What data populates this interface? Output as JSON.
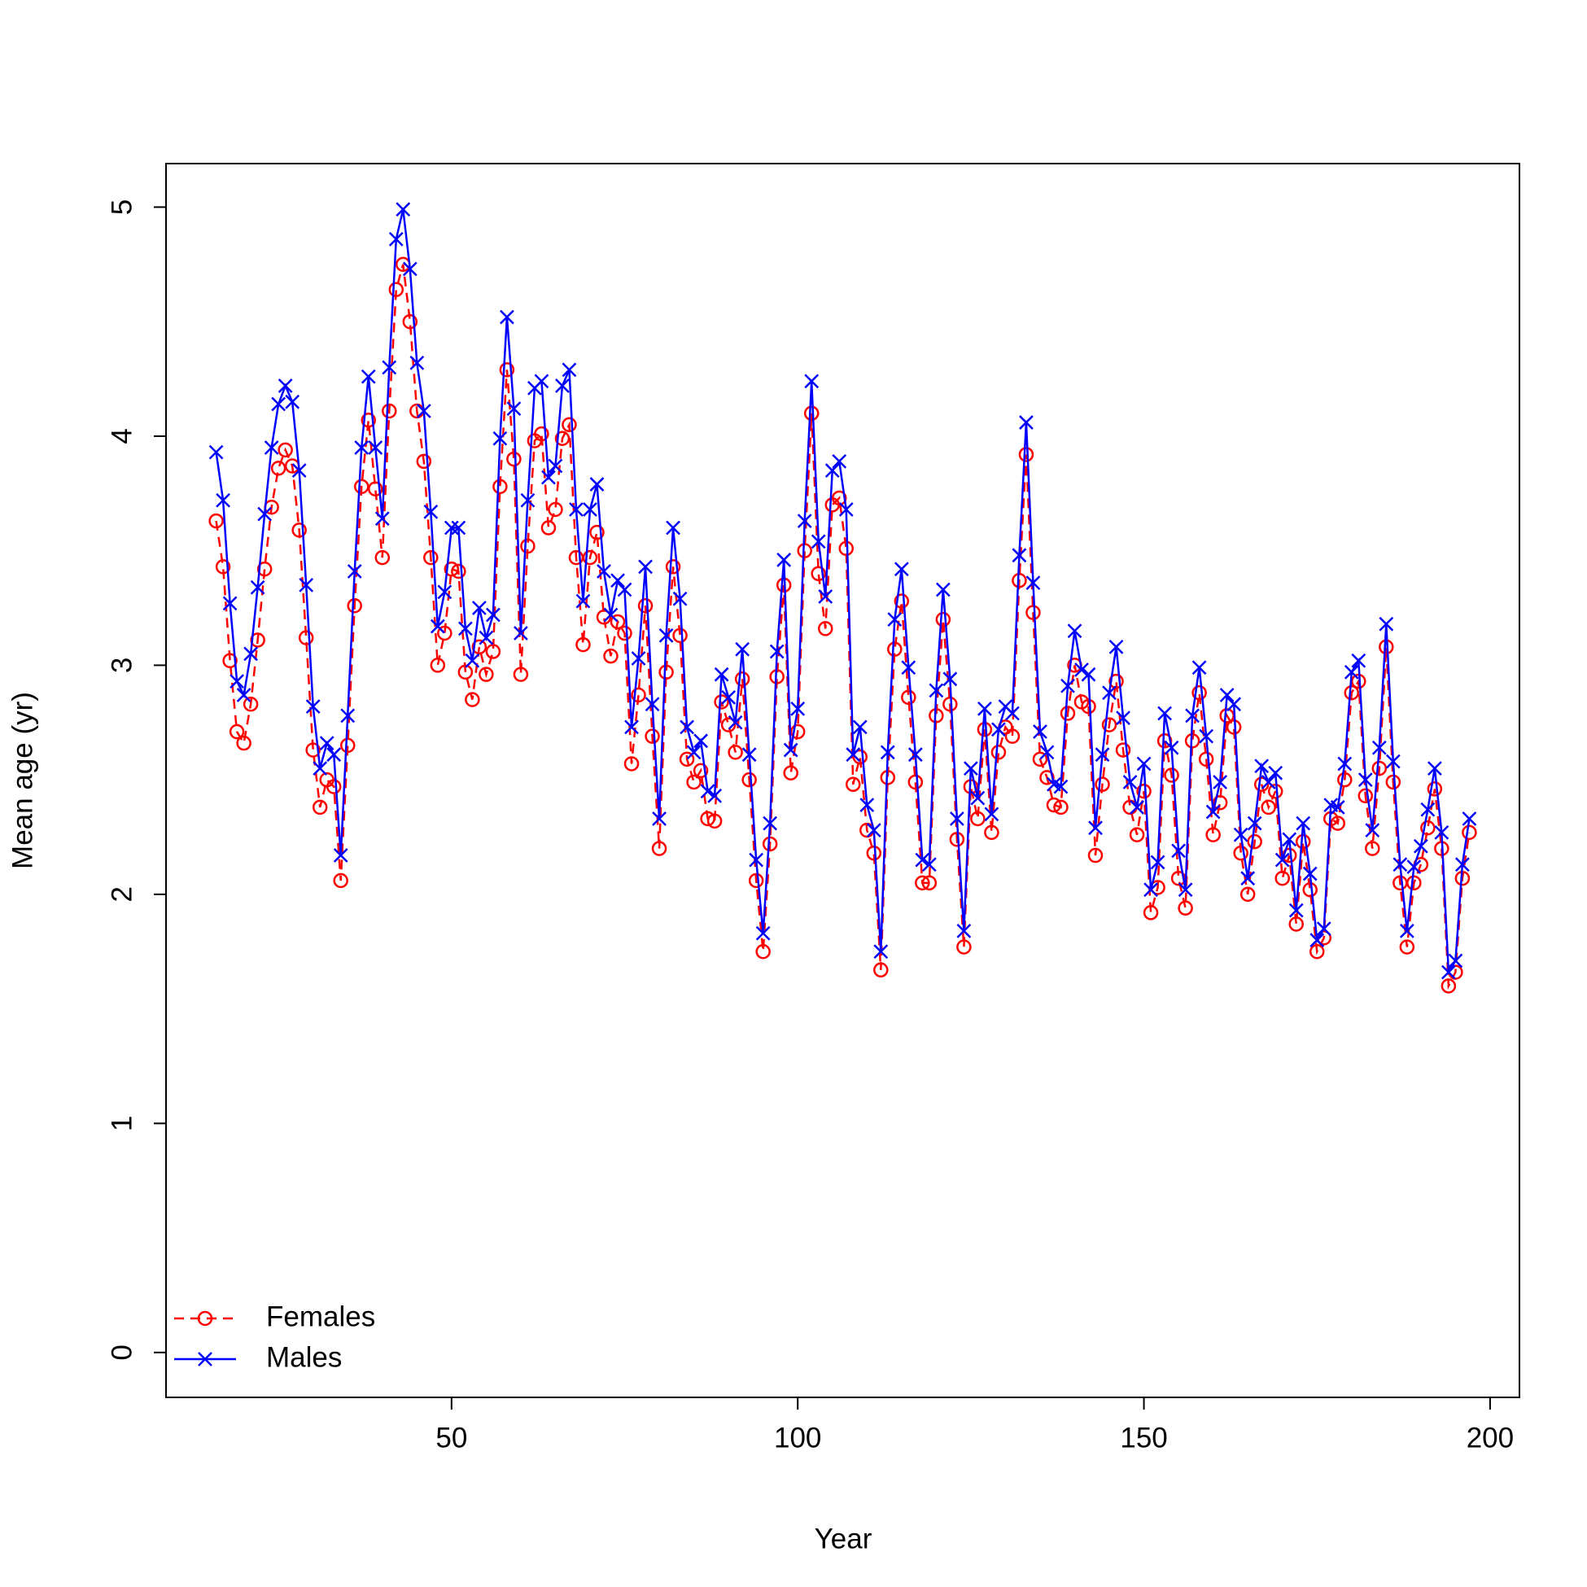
{
  "chart_data": {
    "type": "line",
    "xlabel": "Year",
    "ylabel": "Mean age (yr)",
    "xlim": [
      8.76,
      204.24
    ],
    "ylim": [
      -0.196,
      5.19
    ],
    "xticks": [
      50,
      100,
      150,
      200
    ],
    "yticks": [
      0,
      1,
      2,
      3,
      4,
      5
    ],
    "legend": "bottomleft",
    "x": [
      16,
      17,
      18,
      19,
      20,
      21,
      22,
      23,
      24,
      25,
      26,
      27,
      28,
      29,
      30,
      31,
      32,
      33,
      34,
      35,
      36,
      37,
      38,
      39,
      40,
      41,
      42,
      43,
      44,
      45,
      46,
      47,
      48,
      49,
      50,
      51,
      52,
      53,
      54,
      55,
      56,
      57,
      58,
      59,
      60,
      61,
      62,
      63,
      64,
      65,
      66,
      67,
      68,
      69,
      70,
      71,
      72,
      73,
      74,
      75,
      76,
      77,
      78,
      79,
      80,
      81,
      82,
      83,
      84,
      85,
      86,
      87,
      88,
      89,
      90,
      91,
      92,
      93,
      94,
      95,
      96,
      97,
      98,
      99,
      100,
      101,
      102,
      103,
      104,
      105,
      106,
      107,
      108,
      109,
      110,
      111,
      112,
      113,
      114,
      115,
      116,
      117,
      118,
      119,
      120,
      121,
      122,
      123,
      124,
      125,
      126,
      127,
      128,
      129,
      130,
      131,
      132,
      133,
      134,
      135,
      136,
      137,
      138,
      139,
      140,
      141,
      142,
      143,
      144,
      145,
      146,
      147,
      148,
      149,
      150,
      151,
      152,
      153,
      154,
      155,
      156,
      157,
      158,
      159,
      160,
      161,
      162,
      163,
      164,
      165,
      166,
      167,
      168,
      169,
      170,
      171,
      172,
      173,
      174,
      175,
      176,
      177,
      178,
      179,
      180,
      181,
      182,
      183,
      184,
      185,
      186,
      187,
      188,
      189,
      190,
      191,
      192,
      193,
      194,
      195,
      196,
      197
    ],
    "series": [
      {
        "name": "Females",
        "color": "#ff0000",
        "linestyle": "dashed",
        "marker": "circle",
        "values": [
          3.63,
          3.43,
          3.02,
          2.71,
          2.66,
          2.83,
          3.11,
          3.42,
          3.69,
          3.86,
          3.94,
          3.87,
          3.59,
          3.12,
          2.63,
          2.38,
          2.5,
          2.47,
          2.06,
          2.65,
          3.26,
          3.78,
          4.07,
          3.77,
          3.47,
          4.11,
          4.64,
          4.75,
          4.5,
          4.11,
          3.89,
          3.47,
          3.0,
          3.14,
          3.42,
          3.41,
          2.97,
          2.85,
          3.08,
          2.96,
          3.06,
          3.78,
          4.29,
          3.9,
          2.96,
          3.52,
          3.98,
          4.01,
          3.6,
          3.68,
          3.99,
          4.05,
          3.47,
          3.09,
          3.47,
          3.58,
          3.21,
          3.04,
          3.19,
          3.14,
          2.57,
          2.87,
          3.26,
          2.69,
          2.2,
          2.97,
          3.43,
          3.13,
          2.59,
          2.49,
          2.54,
          2.33,
          2.32,
          2.84,
          2.74,
          2.62,
          2.94,
          2.5,
          2.06,
          1.75,
          2.22,
          2.95,
          3.35,
          2.53,
          2.71,
          3.5,
          4.1,
          3.4,
          3.16,
          3.7,
          3.73,
          3.51,
          2.48,
          2.6,
          2.28,
          2.18,
          1.67,
          2.51,
          3.07,
          3.28,
          2.86,
          2.49,
          2.05,
          2.05,
          2.78,
          3.2,
          2.83,
          2.24,
          1.77,
          2.47,
          2.33,
          2.72,
          2.27,
          2.62,
          2.73,
          2.69,
          3.37,
          3.92,
          3.23,
          2.59,
          2.51,
          2.39,
          2.38,
          2.79,
          3.0,
          2.84,
          2.82,
          2.17,
          2.48,
          2.74,
          2.93,
          2.63,
          2.38,
          2.26,
          2.45,
          1.92,
          2.03,
          2.67,
          2.52,
          2.07,
          1.94,
          2.67,
          2.88,
          2.59,
          2.26,
          2.4,
          2.78,
          2.73,
          2.18,
          2.0,
          2.23,
          2.48,
          2.38,
          2.45,
          2.07,
          2.17,
          1.87,
          2.23,
          2.02,
          1.75,
          1.81,
          2.33,
          2.31,
          2.5,
          2.88,
          2.93,
          2.43,
          2.2,
          2.55,
          3.08,
          2.49,
          2.05,
          1.77,
          2.05,
          2.13,
          2.29,
          2.46,
          2.2,
          1.6,
          1.66,
          2.07,
          2.27
        ]
      },
      {
        "name": "Males",
        "color": "#0000ff",
        "linestyle": "solid",
        "marker": "cross",
        "values": [
          3.93,
          3.72,
          3.27,
          2.93,
          2.87,
          3.05,
          3.34,
          3.66,
          3.95,
          4.14,
          4.22,
          4.15,
          3.85,
          3.35,
          2.82,
          2.55,
          2.66,
          2.61,
          2.17,
          2.78,
          3.41,
          3.95,
          4.26,
          3.95,
          3.64,
          4.3,
          4.86,
          4.99,
          4.73,
          4.32,
          4.11,
          3.67,
          3.17,
          3.32,
          3.6,
          3.6,
          3.16,
          3.02,
          3.25,
          3.12,
          3.22,
          3.99,
          4.52,
          4.12,
          3.14,
          3.72,
          4.21,
          4.24,
          3.82,
          3.87,
          4.22,
          4.29,
          3.68,
          3.28,
          3.68,
          3.79,
          3.41,
          3.22,
          3.37,
          3.33,
          2.73,
          3.03,
          3.43,
          2.83,
          2.33,
          3.13,
          3.6,
          3.29,
          2.73,
          2.62,
          2.67,
          2.45,
          2.43,
          2.96,
          2.86,
          2.75,
          3.07,
          2.61,
          2.15,
          1.83,
          2.31,
          3.06,
          3.46,
          2.63,
          2.81,
          3.63,
          4.24,
          3.54,
          3.3,
          3.85,
          3.89,
          3.68,
          2.61,
          2.73,
          2.39,
          2.28,
          1.75,
          2.62,
          3.2,
          3.42,
          2.99,
          2.61,
          2.15,
          2.13,
          2.89,
          3.33,
          2.94,
          2.33,
          1.84,
          2.55,
          2.42,
          2.81,
          2.35,
          2.72,
          2.82,
          2.79,
          3.48,
          4.06,
          3.36,
          2.71,
          2.62,
          2.48,
          2.47,
          2.91,
          3.15,
          2.98,
          2.96,
          2.29,
          2.61,
          2.88,
          3.08,
          2.77,
          2.49,
          2.38,
          2.57,
          2.02,
          2.14,
          2.79,
          2.64,
          2.19,
          2.02,
          2.78,
          2.99,
          2.69,
          2.36,
          2.49,
          2.87,
          2.83,
          2.26,
          2.07,
          2.31,
          2.56,
          2.49,
          2.53,
          2.15,
          2.24,
          1.93,
          2.31,
          2.09,
          1.8,
          1.85,
          2.39,
          2.38,
          2.57,
          2.97,
          3.02,
          2.5,
          2.28,
          2.64,
          3.18,
          2.58,
          2.13,
          1.84,
          2.12,
          2.21,
          2.37,
          2.55,
          2.27,
          1.66,
          1.71,
          2.13,
          2.33
        ]
      }
    ]
  }
}
